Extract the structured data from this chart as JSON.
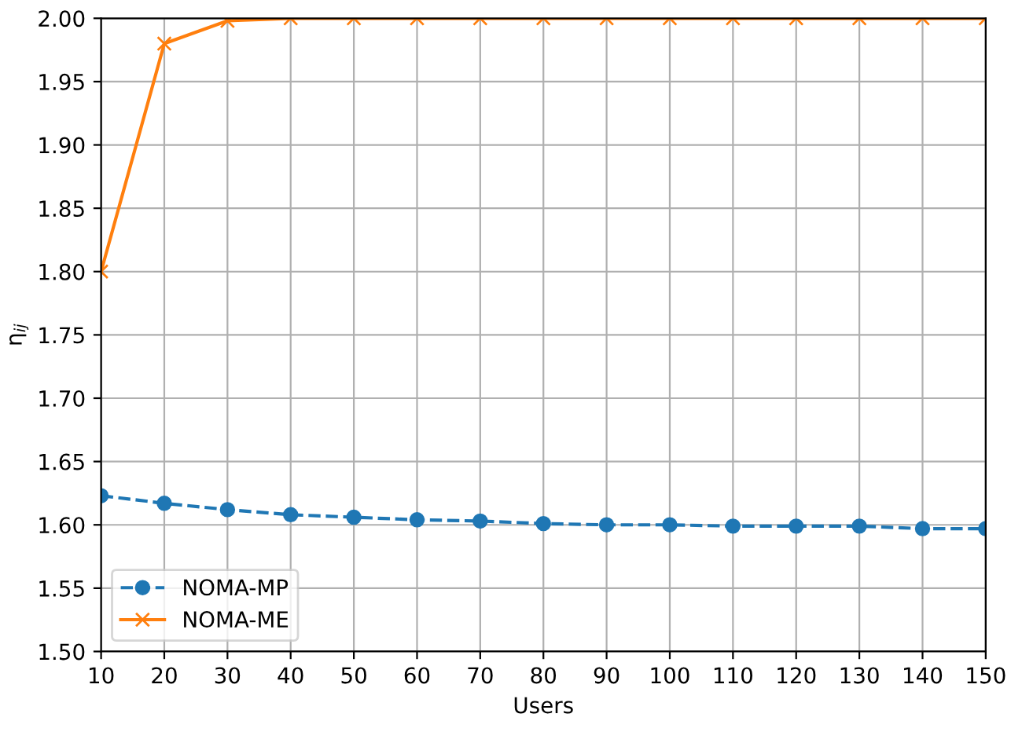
{
  "chart_data": {
    "type": "line",
    "xlabel": "Users",
    "ylabel": "η$_{ij}$",
    "x": [
      10,
      20,
      30,
      40,
      50,
      60,
      70,
      80,
      90,
      100,
      110,
      120,
      130,
      140,
      150
    ],
    "series": [
      {
        "name": "NOMA-MP",
        "color": "#1f77b4",
        "marker": "circle",
        "line_style": "dashed",
        "values": [
          1.623,
          1.617,
          1.612,
          1.608,
          1.606,
          1.604,
          1.603,
          1.601,
          1.6,
          1.6,
          1.599,
          1.599,
          1.599,
          1.597,
          1.597
        ]
      },
      {
        "name": "NOMA-ME",
        "color": "#ff7f0e",
        "marker": "cross",
        "line_style": "solid",
        "values": [
          1.8,
          1.98,
          1.998,
          2.0,
          2.0,
          2.0,
          2.0,
          2.0,
          2.0,
          2.0,
          2.0,
          2.0,
          2.0,
          2.0,
          2.0
        ]
      }
    ],
    "xlim": [
      10,
      150
    ],
    "xticks": [
      10,
      20,
      30,
      40,
      50,
      60,
      70,
      80,
      90,
      100,
      110,
      120,
      130,
      140,
      150
    ],
    "ylim": [
      1.5,
      2.0
    ],
    "yticks": [
      {
        "value": 1.5,
        "label": "1.50"
      },
      {
        "value": 1.55,
        "label": "1.55"
      },
      {
        "value": 1.6,
        "label": "1.60"
      },
      {
        "value": 1.65,
        "label": "1.65"
      },
      {
        "value": 1.7,
        "label": "1.70"
      },
      {
        "value": 1.75,
        "label": "1.75"
      },
      {
        "value": 1.8,
        "label": "1.80"
      },
      {
        "value": 1.85,
        "label": "1.85"
      },
      {
        "value": 1.9,
        "label": "1.90"
      },
      {
        "value": 1.95,
        "label": "1.95"
      },
      {
        "value": 2.0,
        "label": "2.00"
      }
    ],
    "grid": true,
    "legend": "lower left"
  }
}
